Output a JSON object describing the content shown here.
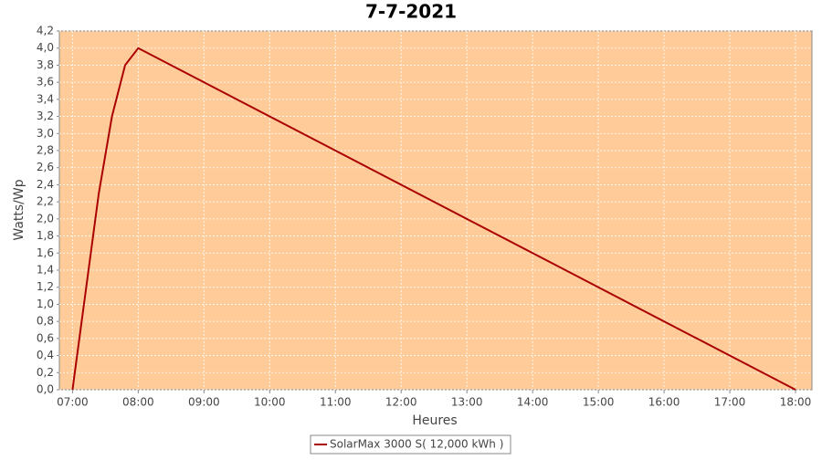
{
  "chart_data": {
    "type": "line",
    "title": "7-7-2021",
    "x_label": "Heures",
    "y_label": "Watts/Wp",
    "x": [
      7.0,
      7.4,
      7.6,
      7.8,
      8.0,
      18.0
    ],
    "series": [
      {
        "name": "SolarMax 3000 S( 12,000 kWh )",
        "color": "#aa0000",
        "values": [
          0,
          2.3,
          3.2,
          3.8,
          4.0,
          0
        ]
      }
    ],
    "xlim": [
      6.8,
      18.25
    ],
    "ylim": [
      0,
      4.2
    ],
    "xticks": [
      {
        "value": 7,
        "label": "07:00"
      },
      {
        "value": 8,
        "label": "08:00"
      },
      {
        "value": 9,
        "label": "09:00"
      },
      {
        "value": 10,
        "label": "10:00"
      },
      {
        "value": 11,
        "label": "11:00"
      },
      {
        "value": 12,
        "label": "12:00"
      },
      {
        "value": 13,
        "label": "13:00"
      },
      {
        "value": 14,
        "label": "14:00"
      },
      {
        "value": 15,
        "label": "15:00"
      },
      {
        "value": 16,
        "label": "16:00"
      },
      {
        "value": 17,
        "label": "17:00"
      },
      {
        "value": 18,
        "label": "18:00"
      }
    ],
    "yticks": [
      {
        "value": 0,
        "label": "0,0"
      },
      {
        "value": 0.2,
        "label": "0,2"
      },
      {
        "value": 0.4,
        "label": "0,4"
      },
      {
        "value": 0.6,
        "label": "0,6"
      },
      {
        "value": 0.8,
        "label": "0,8"
      },
      {
        "value": 1.0,
        "label": "1,0"
      },
      {
        "value": 1.2,
        "label": "1,2"
      },
      {
        "value": 1.4,
        "label": "1,4"
      },
      {
        "value": 1.6,
        "label": "1,6"
      },
      {
        "value": 1.8,
        "label": "1,8"
      },
      {
        "value": 2.0,
        "label": "2,0"
      },
      {
        "value": 2.2,
        "label": "2,2"
      },
      {
        "value": 2.4,
        "label": "2,4"
      },
      {
        "value": 2.6,
        "label": "2,6"
      },
      {
        "value": 2.8,
        "label": "2,8"
      },
      {
        "value": 3.0,
        "label": "3,0"
      },
      {
        "value": 3.2,
        "label": "3,2"
      },
      {
        "value": 3.4,
        "label": "3,4"
      },
      {
        "value": 3.6,
        "label": "3,6"
      },
      {
        "value": 3.8,
        "label": "3,8"
      },
      {
        "value": 4.0,
        "label": "4,0"
      },
      {
        "value": 4.2,
        "label": "4,2"
      }
    ],
    "grid": true,
    "background": "#ffcc99"
  }
}
